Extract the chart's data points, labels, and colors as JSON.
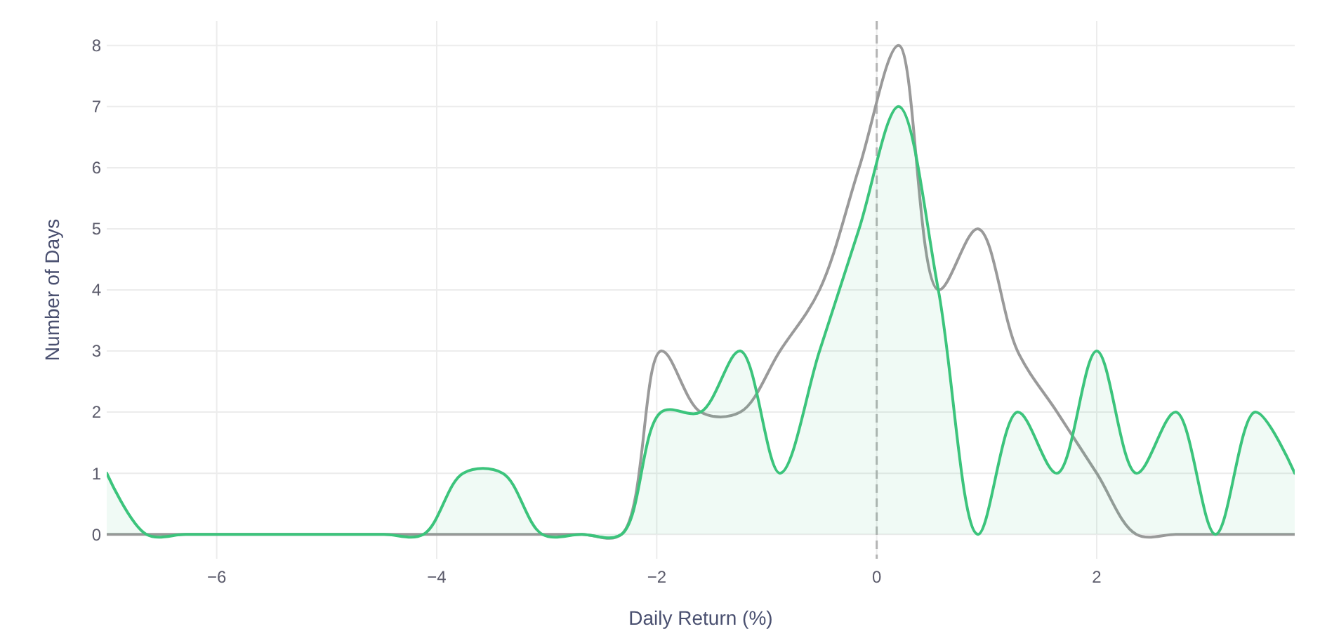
{
  "chart_data": {
    "type": "line",
    "xlabel": "Daily Return (%)",
    "ylabel": "Number of Days",
    "x": [
      -7,
      -6.64,
      -6.28,
      -5.92,
      -5.56,
      -5.2,
      -4.84,
      -4.48,
      -4.12,
      -3.76,
      -3.4,
      -3.04,
      -2.68,
      -2.32,
      -1.96,
      -1.6,
      -1.24,
      -0.88,
      -0.52,
      -0.16,
      0.2,
      0.56,
      0.92,
      1.28,
      1.64,
      2,
      2.36,
      2.72,
      3.08,
      3.44,
      3.8
    ],
    "series": [
      {
        "color": "#9a9a9a",
        "values": [
          0,
          0,
          0,
          0,
          0,
          0,
          0,
          0,
          0,
          0,
          0,
          0,
          0,
          0,
          3,
          2,
          2,
          3,
          4,
          6,
          8,
          4,
          5,
          3,
          2,
          1,
          0,
          0,
          0,
          0,
          0
        ]
      },
      {
        "type": "area",
        "color": "#3cc47c",
        "values": [
          1,
          0,
          0,
          0,
          0,
          0,
          0,
          0,
          0,
          1,
          1,
          0,
          0,
          0,
          2,
          2,
          3,
          1,
          3,
          5,
          7,
          4,
          0,
          2,
          1,
          3,
          1,
          2,
          0,
          2,
          1
        ]
      }
    ],
    "xlim": [
      -7,
      3.8
    ],
    "ylim": [
      -0.4,
      8.4
    ],
    "xticks": [
      -6,
      -4,
      -2,
      0,
      2
    ],
    "yticks": [
      0,
      1,
      2,
      3,
      4,
      5,
      6,
      7,
      8
    ],
    "grid": true,
    "ref_lines": [
      {
        "axis": "x",
        "value": 0,
        "color": "#b4b4b4",
        "line_style": "dashed"
      }
    ]
  }
}
